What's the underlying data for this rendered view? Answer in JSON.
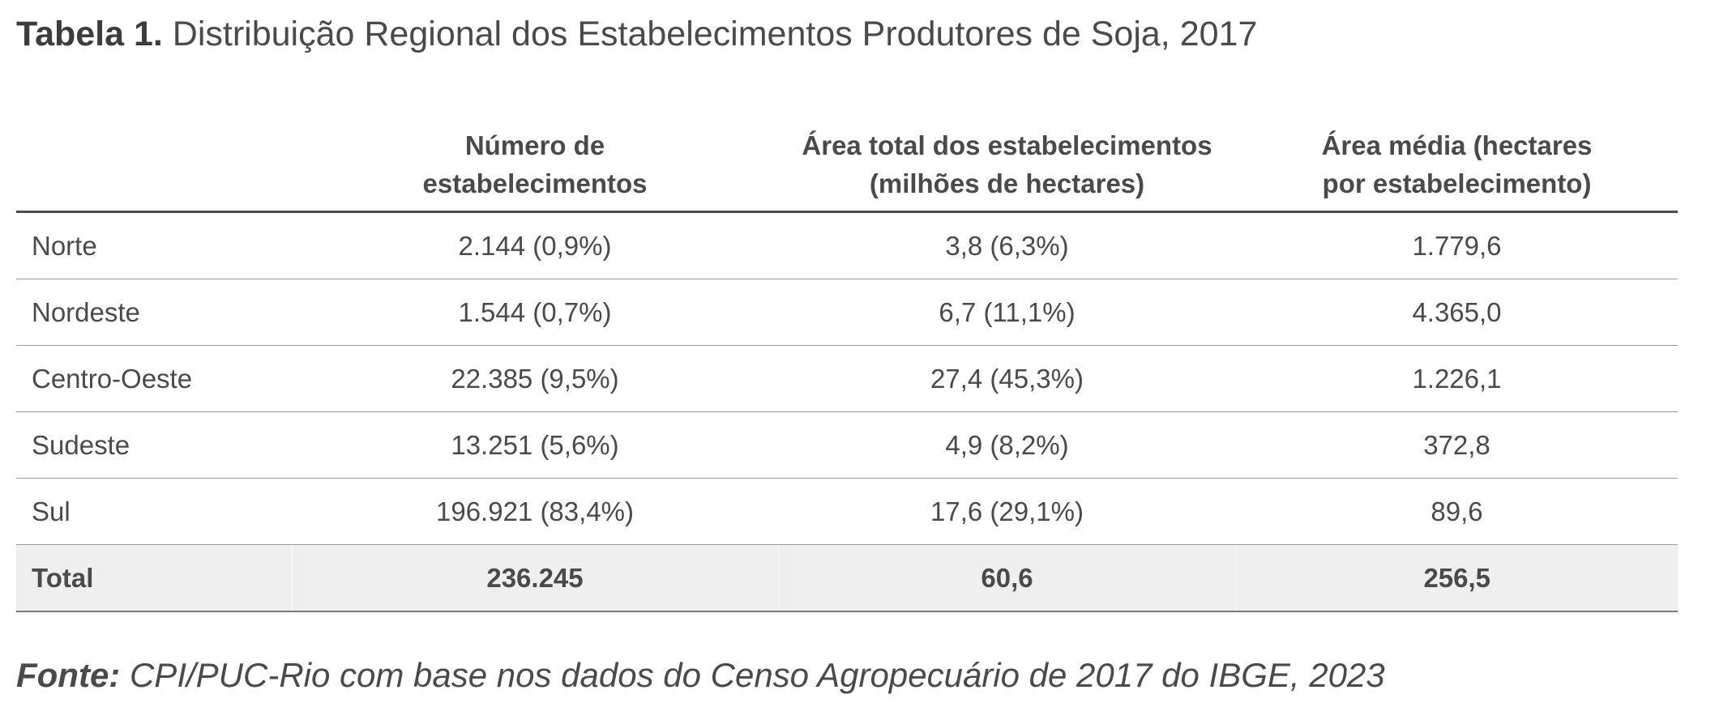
{
  "title": {
    "label": "Tabela 1.",
    "text": "Distribuição Regional dos Estabelecimentos Produtores de Soja, 2017"
  },
  "table": {
    "headers": [
      "",
      [
        "Número de",
        "estabelecimentos"
      ],
      [
        "Área total dos estabelecimentos",
        "(milhões de hectares)"
      ],
      [
        "Área média (hectares",
        "por estabelecimento)"
      ]
    ],
    "rows": [
      [
        "Norte",
        "2.144 (0,9%)",
        "3,8 (6,3%)",
        "1.779,6"
      ],
      [
        "Nordeste",
        "1.544 (0,7%)",
        "6,7 (11,1%)",
        "4.365,0"
      ],
      [
        "Centro-Oeste",
        "22.385 (9,5%)",
        "27,4 (45,3%)",
        "1.226,1"
      ],
      [
        "Sudeste",
        "13.251 (5,6%)",
        "4,9 (8,2%)",
        "372,8"
      ],
      [
        "Sul",
        "196.921 (83,4%)",
        "17,6 (29,1%)",
        "89,6"
      ]
    ],
    "total": [
      "Total",
      "236.245",
      "60,6",
      "256,5"
    ]
  },
  "source": {
    "label": "Fonte:",
    "text": "CPI/PUC-Rio com base nos dados do Censo Agropecuário de 2017 do IBGE, 2023"
  }
}
